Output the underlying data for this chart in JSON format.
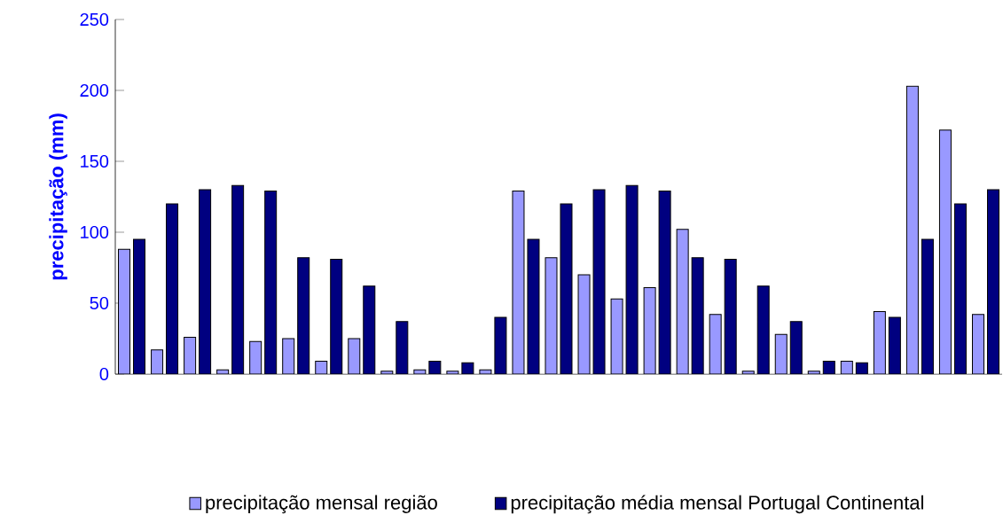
{
  "chart_data": {
    "type": "bar",
    "ylabel": "precipitação  (mm)",
    "categories": [
      null,
      null,
      null,
      null,
      null,
      null,
      null,
      null,
      null,
      null,
      null,
      null,
      null,
      null,
      null,
      null,
      null,
      null,
      null,
      null,
      null,
      null,
      null,
      null,
      null,
      null,
      null
    ],
    "series": [
      {
        "name": "precipitação mensal região",
        "color": "#9999ff",
        "values": [
          88,
          17,
          26,
          3,
          23,
          25,
          9,
          25,
          2,
          3,
          2,
          3,
          129,
          82,
          70,
          53,
          61,
          102,
          42,
          2,
          28,
          2,
          9,
          44,
          203,
          172,
          42
        ]
      },
      {
        "name": "precipitação média mensal Portugal Continental",
        "color": "#000080",
        "values": [
          95,
          120,
          130,
          133,
          129,
          82,
          81,
          62,
          37,
          9,
          8,
          40,
          95,
          120,
          130,
          133,
          129,
          82,
          81,
          62,
          37,
          9,
          8,
          40,
          95,
          120,
          130
        ]
      }
    ],
    "ylim": [
      0,
      250
    ],
    "yticks": [
      0,
      50,
      100,
      150,
      200,
      250
    ],
    "legend": "bottom"
  }
}
